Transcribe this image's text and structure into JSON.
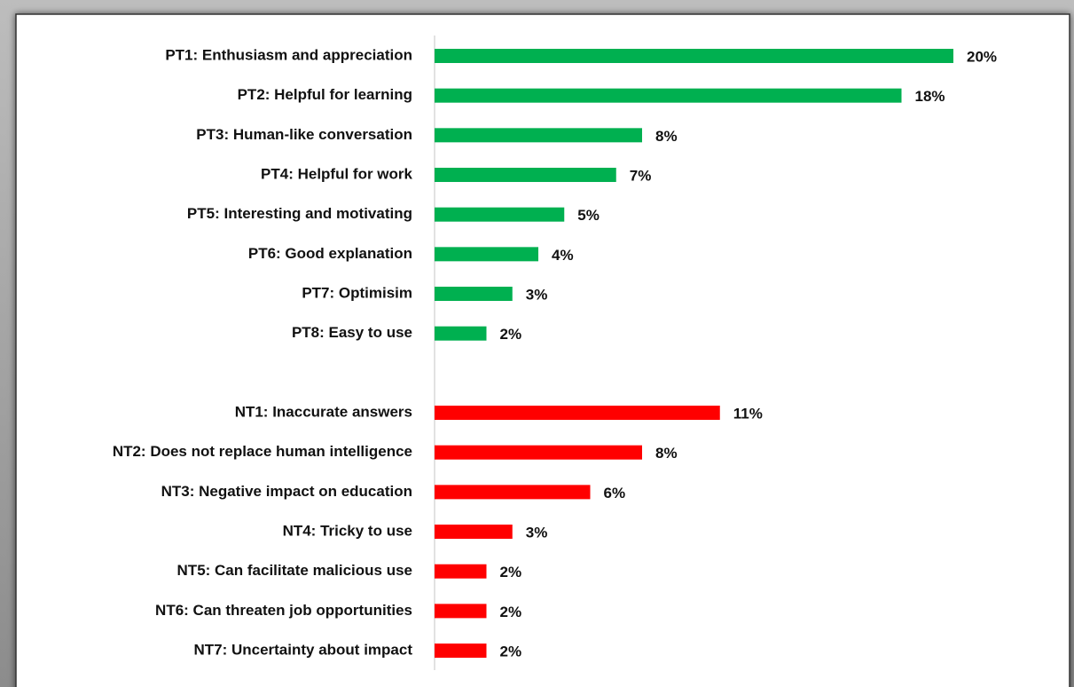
{
  "chart_data": {
    "type": "barh",
    "categories": [
      "PT1: Enthusiasm and appreciation",
      "PT2: Helpful for learning",
      "PT3: Human-like conversation",
      "PT4: Helpful for work",
      "PT5: Interesting and motivating",
      "PT6: Good explanation",
      "PT7: Optimisim",
      "PT8: Easy to use",
      null,
      "NT1: Inaccurate answers",
      "NT2: Does not replace human intelligence",
      "NT3: Negative impact on education",
      "NT4: Tricky to use",
      "NT5: Can facilitate malicious use",
      "NT6: Can threaten job opportunities",
      "NT7: Uncertainty about impact"
    ],
    "values": [
      20,
      18,
      8,
      7,
      5,
      4,
      3,
      2,
      null,
      11,
      8,
      6,
      3,
      2,
      2,
      2
    ],
    "value_labels": [
      "20%",
      "18%",
      "8%",
      "7%",
      "5%",
      "4%",
      "3%",
      "2%",
      null,
      "11%",
      "8%",
      "6%",
      "3%",
      "2%",
      "2%",
      "2%"
    ],
    "colors": [
      "#00b050",
      "#00b050",
      "#00b050",
      "#00b050",
      "#00b050",
      "#00b050",
      "#00b050",
      "#00b050",
      null,
      "#ff0000",
      "#ff0000",
      "#ff0000",
      "#ff0000",
      "#ff0000",
      "#ff0000",
      "#ff0000"
    ],
    "xlim": [
      0,
      20
    ]
  }
}
